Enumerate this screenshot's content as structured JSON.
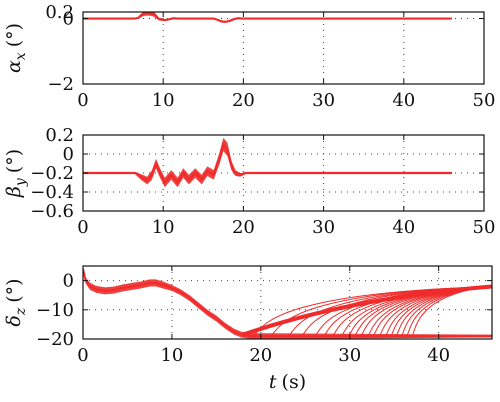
{
  "chart_data": [
    {
      "type": "line",
      "ylabel": "αx (°)",
      "ylabel_symbol": "α",
      "ylabel_sub": "x",
      "ylabel_unit": "(°)",
      "xlim": [
        0,
        50
      ],
      "ylim": [
        -2,
        0.2
      ],
      "xticks": [
        0,
        10,
        20,
        30,
        40,
        50
      ],
      "yticks": [
        {
          "v": 0.2,
          "label": "0.2"
        },
        {
          "v": 0,
          "label": "0"
        },
        {
          "v": -2,
          "label": "−2"
        }
      ],
      "grid": "dotted",
      "series": [
        {
          "color": "#ef2b2b",
          "x": [
            0,
            6.5,
            6.9,
            7.2,
            7.6,
            8.0,
            8.5,
            8.9,
            9.2,
            9.5,
            10.2,
            10.8,
            11.3,
            11.8,
            16.3,
            16.8,
            17.3,
            17.8,
            18.3,
            18.8,
            19.3,
            20,
            46
          ],
          "y": [
            0,
            0,
            0.02,
            0.09,
            0.15,
            0.17,
            0.16,
            0.12,
            0.05,
            -0.02,
            -0.05,
            -0.02,
            0.01,
            0,
            0,
            -0.04,
            -0.09,
            -0.1,
            -0.07,
            -0.02,
            0.01,
            0,
            0
          ],
          "band": [
            0,
            0,
            0.03,
            0.05,
            0.07,
            0.08,
            0.08,
            0.07,
            0.06,
            0.04,
            0.02,
            0.02,
            0.01,
            0,
            0,
            0.02,
            0.03,
            0.03,
            0.03,
            0.02,
            0.01,
            0,
            0
          ]
        }
      ]
    },
    {
      "type": "line",
      "ylabel": "βy (°)",
      "ylabel_symbol": "β",
      "ylabel_sub": "y",
      "ylabel_unit": "(°)",
      "xlim": [
        0,
        50
      ],
      "ylim": [
        -0.6,
        0.2
      ],
      "xticks": [
        0,
        10,
        20,
        30,
        40,
        50
      ],
      "yticks": [
        {
          "v": 0.2,
          "label": "0.2"
        },
        {
          "v": 0,
          "label": "0"
        },
        {
          "v": -0.2,
          "label": "−0.2"
        },
        {
          "v": -0.4,
          "label": "−0.4"
        },
        {
          "v": -0.6,
          "label": "−0.6"
        }
      ],
      "grid": "dotted",
      "series": [
        {
          "color": "#ef2b2b",
          "x": [
            0,
            6.5,
            7.2,
            8.0,
            8.6,
            9.1,
            9.6,
            10.2,
            11.0,
            11.8,
            12.5,
            13.2,
            14.0,
            14.8,
            15.5,
            16.3,
            17.0,
            17.5,
            18.0,
            18.5,
            19.0,
            19.6,
            20.3,
            46
          ],
          "y": [
            -0.2,
            -0.2,
            -0.24,
            -0.28,
            -0.22,
            -0.1,
            -0.2,
            -0.3,
            -0.22,
            -0.3,
            -0.2,
            -0.27,
            -0.2,
            -0.27,
            -0.18,
            -0.22,
            -0.05,
            0.1,
            0.05,
            -0.12,
            -0.2,
            -0.22,
            -0.2,
            -0.2
          ],
          "band": [
            0.01,
            0.01,
            0.03,
            0.04,
            0.05,
            0.05,
            0.05,
            0.05,
            0.05,
            0.05,
            0.05,
            0.05,
            0.05,
            0.05,
            0.05,
            0.05,
            0.06,
            0.07,
            0.07,
            0.05,
            0.03,
            0.02,
            0.01,
            0.01
          ]
        }
      ]
    },
    {
      "type": "line",
      "ylabel": "δz (°)",
      "ylabel_symbol": "δ",
      "ylabel_sub": "z",
      "ylabel_unit": "(°)",
      "xlabel": "t (s)",
      "xlabel_symbol": "t",
      "xlabel_unit": "(s)",
      "xlim": [
        0,
        46
      ],
      "ylim": [
        -20,
        5
      ],
      "xticks": [
        0,
        10,
        20,
        30,
        40
      ],
      "yticks": [
        {
          "v": 0,
          "label": "0"
        },
        {
          "v": -10,
          "label": "−10"
        },
        {
          "v": -20,
          "label": "−20"
        }
      ],
      "grid": "dotted",
      "series": [
        {
          "color": "#ef2b2b",
          "x": [
            0,
            0.3,
            0.8,
            1.5,
            2.5,
            3.5,
            4.5,
            5.5,
            6.5,
            7.5,
            8.2,
            9,
            10,
            11,
            12,
            13,
            14,
            15,
            16,
            17,
            17.8,
            18.5,
            19,
            46
          ],
          "y": [
            4,
            0,
            -2,
            -3,
            -3.5,
            -3.2,
            -2.5,
            -2,
            -1.5,
            -0.8,
            -0.8,
            -1.5,
            -2.5,
            -4,
            -6,
            -8.5,
            -11,
            -13,
            -15.5,
            -17.5,
            -18.5,
            -18.8,
            -19,
            -19
          ],
          "band": [
            0.5,
            1,
            1.2,
            1.2,
            1.2,
            1.2,
            1.2,
            1.2,
            1.2,
            1.2,
            1.2,
            1.2,
            1,
            1,
            1,
            1,
            1,
            1,
            1,
            1,
            1,
            1,
            1,
            0.5
          ]
        }
      ],
      "recovery_curves": {
        "color": "#ef2b2b",
        "y_start": -19,
        "y_end": -2,
        "x_end": 46,
        "x_starts": [
          19,
          21,
          23,
          24.5,
          26,
          27,
          28,
          29,
          29.8,
          30.5,
          31.2,
          32,
          32.6,
          33.3,
          34,
          34.6,
          35.2,
          35.8,
          36.4,
          37
        ]
      }
    }
  ]
}
